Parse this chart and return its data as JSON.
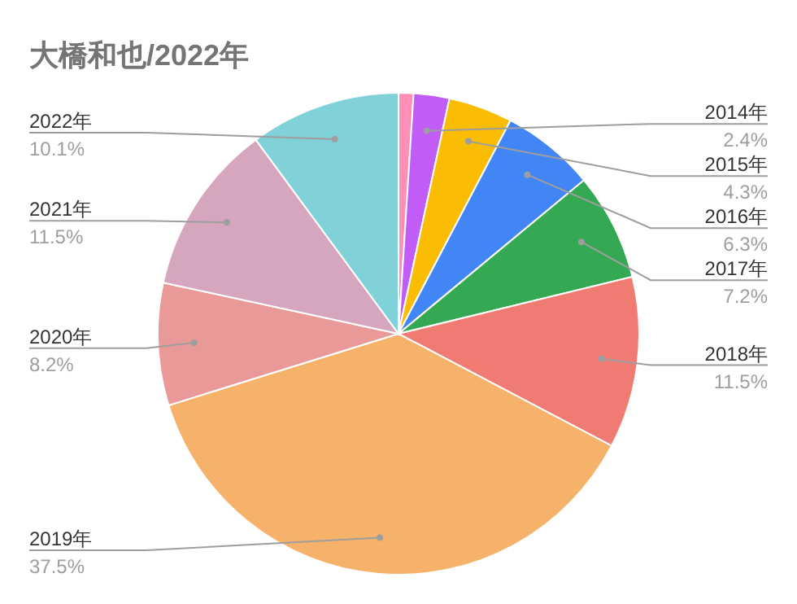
{
  "chart_data": {
    "type": "pie",
    "title": "大橋和也/2022年",
    "categories": [
      null,
      "2014年",
      "2015年",
      "2016年",
      "2017年",
      "2018年",
      "2019年",
      "2020年",
      "2021年",
      "2022年"
    ],
    "values": [
      1.0,
      2.4,
      4.3,
      6.3,
      7.2,
      11.5,
      37.5,
      8.2,
      11.5,
      10.1
    ],
    "value_labels": [
      null,
      "2.4%",
      "4.3%",
      "6.3%",
      "7.2%",
      "11.5%",
      "37.5%",
      "8.2%",
      "11.5%",
      "10.1%"
    ],
    "colors": [
      "#ff8fb8",
      "#c25cf7",
      "#fbbc04",
      "#4285f4",
      "#34a853",
      "#f07b72",
      "#f6b26b",
      "#ea9999",
      "#d5a6bd",
      "#80d2d8"
    ]
  }
}
